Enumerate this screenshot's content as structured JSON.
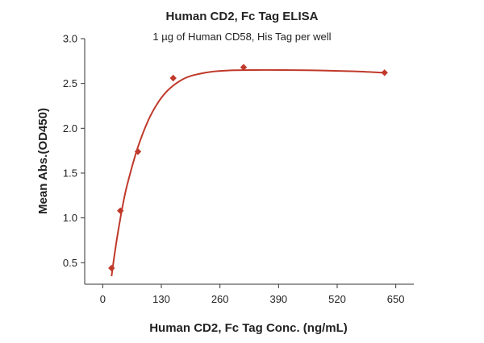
{
  "chart_data": {
    "type": "scatter",
    "title": "Human CD2, Fc Tag ELISA",
    "subtitle": "1 µg of Human CD58, His Tag per well",
    "xlabel": "Human CD2, Fc Tag Conc. (ng/mL)",
    "ylabel": "Mean Abs.(OD450)",
    "xlim": [
      -40,
      690
    ],
    "ylim": [
      0.26,
      3.0
    ],
    "xticks": [
      0,
      130,
      260,
      390,
      520,
      650
    ],
    "yticks": [
      0.5,
      1.0,
      1.5,
      2.0,
      2.5,
      3.0
    ],
    "ytick_labels": [
      "0.5",
      "1.0",
      "1.5",
      "2.0",
      "2.5",
      "3.0"
    ],
    "grid": false,
    "series": [
      {
        "color": "#c0392b",
        "points": [
          {
            "x": 19.5,
            "y": 0.44
          },
          {
            "x": 39.1,
            "y": 1.08
          },
          {
            "x": 78.1,
            "y": 1.74
          },
          {
            "x": 156.3,
            "y": 2.56
          },
          {
            "x": 312.5,
            "y": 2.68
          },
          {
            "x": 625,
            "y": 2.62
          }
        ]
      }
    ],
    "fit_curve": [
      {
        "x": 19.5,
        "y": 0.35
      },
      {
        "x": 30,
        "y": 0.72
      },
      {
        "x": 40,
        "y": 1.02
      },
      {
        "x": 50,
        "y": 1.28
      },
      {
        "x": 60,
        "y": 1.48
      },
      {
        "x": 70,
        "y": 1.66
      },
      {
        "x": 80,
        "y": 1.82
      },
      {
        "x": 95,
        "y": 2.02
      },
      {
        "x": 110,
        "y": 2.18
      },
      {
        "x": 130,
        "y": 2.34
      },
      {
        "x": 150,
        "y": 2.45
      },
      {
        "x": 175,
        "y": 2.54
      },
      {
        "x": 200,
        "y": 2.59
      },
      {
        "x": 240,
        "y": 2.63
      },
      {
        "x": 280,
        "y": 2.645
      },
      {
        "x": 340,
        "y": 2.65
      },
      {
        "x": 400,
        "y": 2.65
      },
      {
        "x": 480,
        "y": 2.645
      },
      {
        "x": 560,
        "y": 2.635
      },
      {
        "x": 625,
        "y": 2.62
      }
    ]
  }
}
